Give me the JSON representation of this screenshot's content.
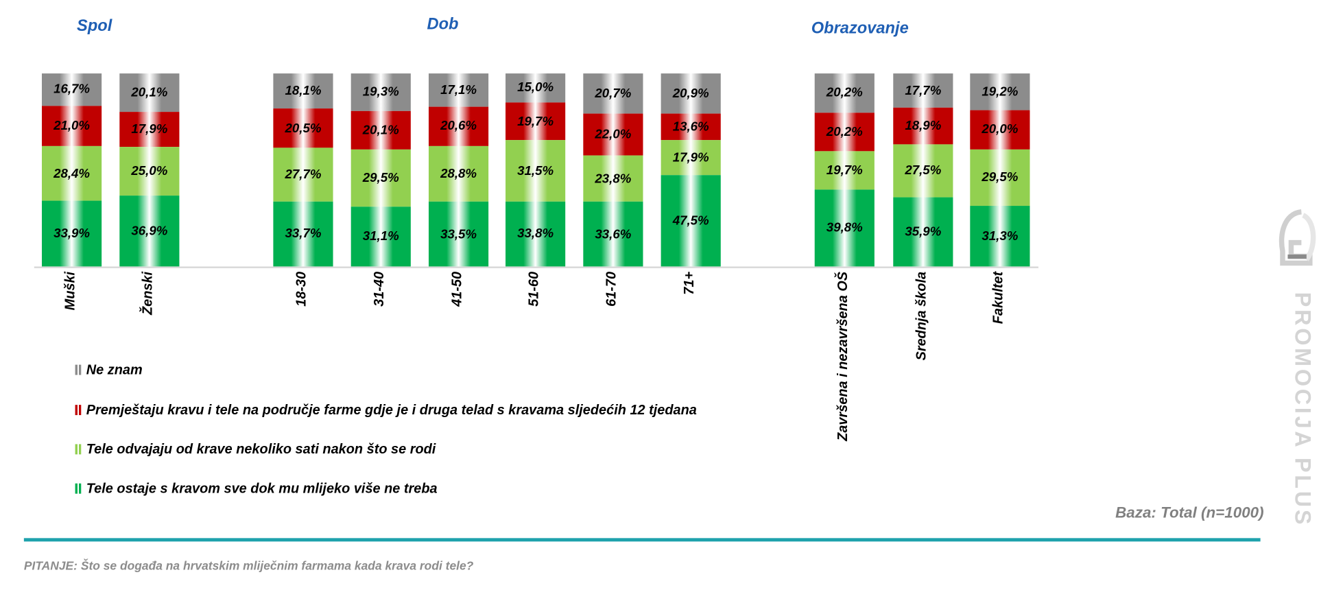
{
  "chart_data": {
    "type": "bar",
    "stacked": true,
    "groups": [
      {
        "title": "Spol",
        "categories": [
          "Muški",
          "Ženski"
        ]
      },
      {
        "title": "Dob",
        "categories": [
          "18-30",
          "31-40",
          "41-50",
          "51-60",
          "61-70",
          "71+"
        ]
      },
      {
        "title": "Obrazovanje",
        "categories": [
          "Završena i nezavršena OŠ",
          "Srednja škola",
          "Fakultet"
        ]
      }
    ],
    "categories": [
      "Muški",
      "Ženski",
      "18-30",
      "31-40",
      "41-50",
      "51-60",
      "61-70",
      "71+",
      "Završena i nezavršena OŠ",
      "Srednja škola",
      "Fakultet"
    ],
    "series": [
      {
        "name": "Tele ostaje s kravom sve dok mu mlijeko više ne treba",
        "color": "#00b050",
        "values": [
          33.9,
          36.9,
          33.7,
          31.1,
          33.5,
          33.8,
          33.6,
          47.5,
          39.8,
          35.9,
          31.3
        ]
      },
      {
        "name": "Tele odvajaju od krave nekoliko sati nakon što se rodi",
        "color": "#92d050",
        "values": [
          28.4,
          25.0,
          27.7,
          29.5,
          28.8,
          31.5,
          23.8,
          17.9,
          19.7,
          27.5,
          29.5
        ]
      },
      {
        "name": "Premještaju kravu i tele na područje farme gdje je i druga telad s kravama sljedećih 12 tjedana",
        "color": "#c00000",
        "values": [
          21.0,
          17.9,
          20.5,
          20.1,
          20.6,
          19.7,
          22.0,
          13.6,
          20.2,
          18.9,
          20.0
        ]
      },
      {
        "name": "Ne znam",
        "color": "#8c8c8c",
        "values": [
          16.7,
          20.1,
          18.1,
          19.3,
          17.1,
          15.0,
          20.7,
          20.9,
          20.2,
          17.7,
          19.2
        ]
      }
    ],
    "legend_order": [
      3,
      2,
      1,
      0
    ],
    "legend_placement": "bottom-left",
    "ylim": [
      0,
      100
    ],
    "value_format": "comma-decimal-percent"
  },
  "footer": {
    "base": "Baza: Total (n=1000)",
    "question": "PITANJE: Što se događa na hrvatskim mliječnim farmama kada krava rodi tele?",
    "brand": "PROMOCIJA PLUS"
  }
}
